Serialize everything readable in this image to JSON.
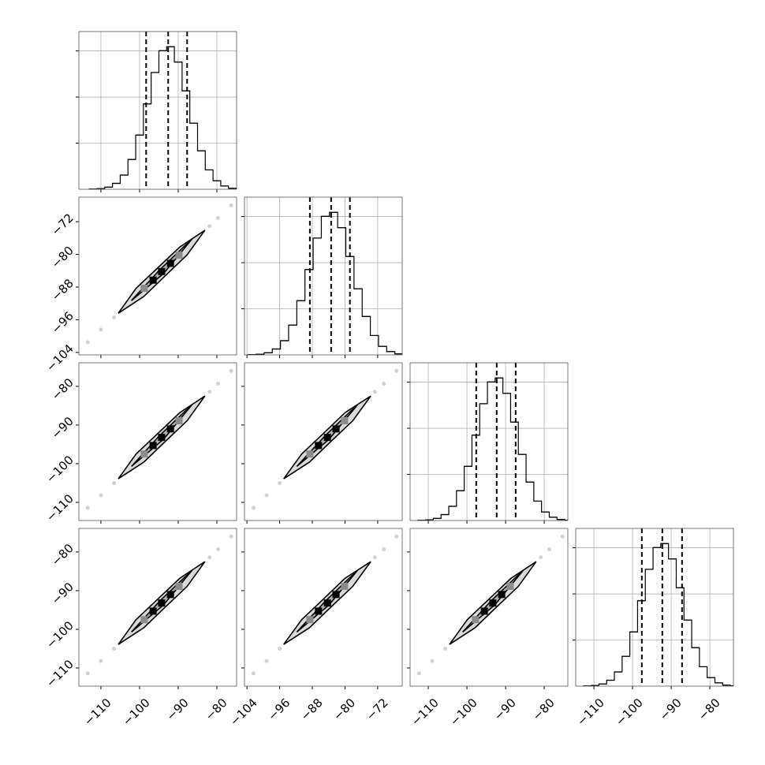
{
  "chart_data": {
    "type": "corner",
    "params": [
      {
        "lim": [
          -115.7,
          -74.9
        ],
        "ticks": [
          {
            "value": -110,
            "label": "−110"
          },
          {
            "value": -100,
            "label": "−100"
          },
          {
            "value": -90,
            "label": "−90"
          },
          {
            "value": -80,
            "label": "−80"
          }
        ]
      },
      {
        "lim": [
          -104.6,
          -66.0
        ],
        "ticks": [
          {
            "value": -104,
            "label": "−104"
          },
          {
            "value": -96,
            "label": "−96"
          },
          {
            "value": -88,
            "label": "−88"
          },
          {
            "value": -80,
            "label": "−80"
          },
          {
            "value": -72,
            "label": "−72"
          }
        ]
      },
      {
        "lim": [
          -114.7,
          -73.9
        ],
        "ticks": [
          {
            "value": -110,
            "label": "−110"
          },
          {
            "value": -100,
            "label": "−100"
          },
          {
            "value": -90,
            "label": "−90"
          },
          {
            "value": -80,
            "label": "−80"
          }
        ]
      },
      {
        "lim": [
          -114.7,
          -73.9
        ],
        "ticks": [
          {
            "value": -110,
            "label": "−110"
          },
          {
            "value": -100,
            "label": "−100"
          },
          {
            "value": -90,
            "label": "−90"
          },
          {
            "value": -80,
            "label": "−80"
          }
        ]
      }
    ],
    "hist_ylim": [
      0,
      3420
    ],
    "hist_yticks": [
      1000,
      2000,
      3000
    ],
    "hist_color": "#000000",
    "grid": true,
    "histograms": [
      {
        "bins": [
          -113,
          -111,
          -109,
          -107,
          -105,
          -103,
          -101,
          -99,
          -97,
          -95,
          -93,
          -91,
          -89,
          -87,
          -85,
          -83,
          -81,
          -79,
          -77,
          -75,
          -73,
          -71
        ],
        "counts": [
          4,
          14,
          46,
          128,
          308,
          647,
          1175,
          1851,
          2532,
          3004,
          3091,
          2759,
          2134,
          1434,
          834,
          420,
          185,
          70,
          23,
          7,
          2
        ],
        "quantiles": [
          -98.3,
          -92.6,
          -87.7
        ]
      },
      {
        "bins": [
          -103.8,
          -101.8,
          -99.8,
          -97.8,
          -95.8,
          -93.8,
          -91.8,
          -89.8,
          -87.8,
          -85.8,
          -83.8,
          -81.8,
          -79.8,
          -77.8,
          -75.8,
          -73.8,
          -71.8,
          -69.8,
          -67.8,
          -65.8,
          -63.8,
          -61.8
        ],
        "counts": [
          4,
          14,
          46,
          128,
          308,
          647,
          1175,
          1851,
          2532,
          3004,
          3091,
          2759,
          2134,
          1434,
          834,
          420,
          185,
          70,
          23,
          7,
          2
        ],
        "quantiles": [
          -88.6,
          -83.4,
          -78.8
        ]
      },
      {
        "bins": [
          -112.7,
          -110.7,
          -108.7,
          -106.7,
          -104.7,
          -102.7,
          -100.7,
          -98.7,
          -96.7,
          -94.7,
          -92.7,
          -90.7,
          -88.7,
          -86.7,
          -84.7,
          -82.7,
          -80.7,
          -78.7,
          -76.7,
          -74.7,
          -72.7,
          -70.7
        ],
        "counts": [
          4,
          14,
          46,
          128,
          308,
          647,
          1175,
          1851,
          2532,
          3004,
          3091,
          2759,
          2134,
          1434,
          834,
          420,
          185,
          70,
          23,
          7,
          2
        ],
        "quantiles": [
          -97.6,
          -92.3,
          -87.4
        ]
      },
      {
        "bins": [
          -112.7,
          -110.7,
          -108.7,
          -106.7,
          -104.7,
          -102.7,
          -100.7,
          -98.7,
          -96.7,
          -94.7,
          -92.7,
          -90.7,
          -88.7,
          -86.7,
          -84.7,
          -82.7,
          -80.7,
          -78.7,
          -76.7,
          -74.7,
          -72.7,
          -70.7
        ],
        "counts": [
          4,
          14,
          46,
          128,
          308,
          647,
          1175,
          1851,
          2532,
          3004,
          3091,
          2759,
          2134,
          1434,
          834,
          420,
          185,
          70,
          23,
          7,
          2
        ],
        "quantiles": [
          -97.6,
          -92.3,
          -87.2
        ]
      }
    ],
    "contour_colors": [
      "#d9d9d9",
      "#b0b0b0"
    ],
    "peak_colors": [
      "#8c8c8c",
      "#000000",
      "#000000",
      "#000000",
      "#8c8c8c"
    ],
    "pairs": [
      [
        {
          "outer": {
            "x": [
              -105.5,
              -100.9,
              -95.3,
              -89.6,
              -83.1,
              -87.7,
              -93.3,
              -98.9
            ],
            "y": [
              -94.4,
              -88.3,
              -83.3,
              -78.2,
              -74.1,
              -80.1,
              -85.2,
              -90.3
            ]
          },
          "inner": {
            "x": [
              -102.1,
              -94.8,
              -86.4,
              -93.8
            ],
            "y": [
              -91.3,
              -83.8,
              -76.2,
              -84.7
            ]
          },
          "peaks": {
            "x": [
              -98.8,
              -96.5,
              -94.3,
              -92.0,
              -89.8
            ],
            "y": [
              -88.3,
              -86.3,
              -84.2,
              -82.2,
              -80.2
            ]
          },
          "samples": {
            "x": [
              -113.4,
              -110.0,
              -106.6,
              -81.9,
              -79.7,
              -76.3
            ],
            "y": [
              -101.5,
              -98.4,
              -95.4,
              -73.1,
              -71.1,
              -68.0
            ]
          }
        }
      ],
      [
        {
          "outer": {
            "x": [
              -105.5,
              -100.9,
              -95.3,
              -89.6,
              -83.1,
              -87.7,
              -93.3,
              -98.9
            ],
            "y": [
              -103.9,
              -97.5,
              -92.2,
              -86.8,
              -82.5,
              -88.9,
              -94.2,
              -99.6
            ]
          },
          "inner": {
            "x": [
              -102.1,
              -94.8,
              -86.4,
              -93.8
            ],
            "y": [
              -100.7,
              -92.7,
              -84.7,
              -93.7
            ]
          },
          "peaks": {
            "x": [
              -98.8,
              -96.5,
              -94.3,
              -92.0,
              -89.8
            ],
            "y": [
              -97.5,
              -95.3,
              -93.2,
              -91.0,
              -88.9
            ]
          },
          "samples": {
            "x": [
              -113.4,
              -110.0,
              -106.6,
              -81.9,
              -79.7,
              -76.3
            ],
            "y": [
              -111.4,
              -108.2,
              -105.0,
              -81.4,
              -79.3,
              -76.0
            ]
          }
        },
        {
          "outer": {
            "x": [
              -95.0,
              -90.6,
              -85.3,
              -80.0,
              -73.7,
              -78.1,
              -83.4,
              -88.7
            ],
            "y": [
              -103.9,
              -97.5,
              -92.2,
              -86.8,
              -82.5,
              -88.9,
              -94.2,
              -99.6
            ]
          },
          "inner": {
            "x": [
              -91.8,
              -84.8,
              -76.9,
              -83.9
            ],
            "y": [
              -100.7,
              -92.7,
              -84.7,
              -93.7
            ]
          },
          "peaks": {
            "x": [
              -88.6,
              -86.5,
              -84.3,
              -82.2,
              -80.1
            ],
            "y": [
              -97.5,
              -95.3,
              -93.2,
              -91.0,
              -88.9
            ]
          },
          "samples": {
            "x": [
              -102.4,
              -99.2,
              -96.0,
              -72.7,
              -70.5,
              -67.4
            ],
            "y": [
              -111.4,
              -108.2,
              -105.0,
              -81.4,
              -79.3,
              -76.0
            ]
          }
        }
      ],
      [
        {
          "outer": {
            "x": [
              -105.5,
              -100.9,
              -95.3,
              -89.6,
              -83.1,
              -87.7,
              -93.3,
              -98.9
            ],
            "y": [
              -103.9,
              -97.5,
              -92.2,
              -86.8,
              -82.5,
              -88.9,
              -94.2,
              -99.6
            ]
          },
          "inner": {
            "x": [
              -102.1,
              -94.8,
              -86.4,
              -93.8
            ],
            "y": [
              -100.7,
              -92.7,
              -84.7,
              -93.7
            ]
          },
          "peaks": {
            "x": [
              -98.8,
              -96.5,
              -94.3,
              -92.0,
              -89.8
            ],
            "y": [
              -97.5,
              -95.3,
              -93.2,
              -91.0,
              -88.9
            ]
          },
          "samples": {
            "x": [
              -113.4,
              -110.0,
              -106.6,
              -81.9,
              -79.7,
              -76.3
            ],
            "y": [
              -111.4,
              -108.2,
              -105.0,
              -81.4,
              -79.3,
              -76.0
            ]
          }
        },
        {
          "outer": {
            "x": [
              -95.0,
              -90.6,
              -85.3,
              -80.0,
              -73.7,
              -78.1,
              -83.4,
              -88.7
            ],
            "y": [
              -103.9,
              -97.5,
              -92.2,
              -86.8,
              -82.5,
              -88.9,
              -94.2,
              -99.6
            ]
          },
          "inner": {
            "x": [
              -91.8,
              -84.8,
              -76.9,
              -83.9
            ],
            "y": [
              -100.7,
              -92.7,
              -84.7,
              -93.7
            ]
          },
          "peaks": {
            "x": [
              -88.6,
              -86.5,
              -84.3,
              -82.2,
              -80.1
            ],
            "y": [
              -97.5,
              -95.3,
              -93.2,
              -91.0,
              -88.9
            ]
          },
          "samples": {
            "x": [
              -102.4,
              -99.2,
              -96.0,
              -72.7,
              -70.5,
              -67.4
            ],
            "y": [
              -111.4,
              -108.2,
              -105.0,
              -81.4,
              -79.3,
              -76.0
            ]
          }
        },
        {
          "outer": {
            "x": [
              -104.5,
              -99.9,
              -94.3,
              -88.6,
              -82.1,
              -86.7,
              -92.3,
              -97.9
            ],
            "y": [
              -103.9,
              -97.5,
              -92.2,
              -86.8,
              -82.5,
              -88.9,
              -94.2,
              -99.6
            ]
          },
          "inner": {
            "x": [
              -101.1,
              -93.8,
              -85.4,
              -92.8
            ],
            "y": [
              -100.7,
              -92.7,
              -84.7,
              -93.7
            ]
          },
          "peaks": {
            "x": [
              -97.8,
              -95.5,
              -93.3,
              -91.0,
              -88.8
            ],
            "y": [
              -97.5,
              -95.3,
              -93.2,
              -91.0,
              -88.9
            ]
          },
          "samples": {
            "x": [
              -112.4,
              -109.0,
              -105.6,
              -80.9,
              -78.7,
              -75.3
            ],
            "y": [
              -111.4,
              -108.2,
              -105.0,
              -81.4,
              -79.3,
              -76.0
            ]
          }
        }
      ]
    ]
  }
}
